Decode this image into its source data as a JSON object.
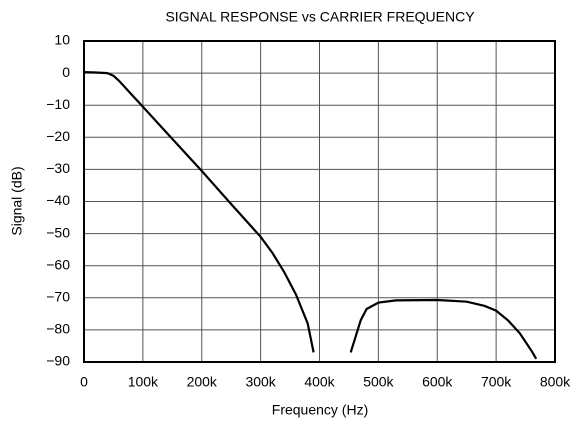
{
  "chart_data": {
    "type": "line",
    "title": "SIGNAL RESPONSE vs CARRIER FREQUENCY",
    "x_label": "Frequency (Hz)",
    "y_label": "Signal (dB)",
    "x": [
      0,
      20000,
      40000,
      50000,
      60000,
      70000,
      80000,
      100000,
      150000,
      200000,
      250000,
      300000,
      320000,
      340000,
      360000,
      380000,
      390000,
      420000,
      453000,
      470000,
      480000,
      500000,
      530000,
      600000,
      650000,
      680000,
      700000,
      720000,
      740000,
      760000,
      768000
    ],
    "series": [
      {
        "name": "Signal",
        "color": "#000000",
        "values": [
          0.3,
          0.2,
          0,
          -0.8,
          -2.5,
          -4.5,
          -6.5,
          -10.5,
          -20.5,
          -30.5,
          -40.8,
          -51,
          -56,
          -62,
          -69,
          -78,
          -87,
          null,
          -87,
          -77,
          -73.5,
          -71.5,
          -70.8,
          -70.7,
          -71.2,
          -72.5,
          -74,
          -77,
          -81,
          -86.5,
          -89
        ]
      }
    ],
    "xlim": [
      0,
      800000
    ],
    "xticks": [
      0,
      {
        "value": 100000,
        "label": "100k"
      },
      {
        "value": 200000,
        "label": "200k"
      },
      {
        "value": 300000,
        "label": "300k"
      },
      {
        "value": 400000,
        "label": "400k"
      },
      {
        "value": 500000,
        "label": "500k"
      },
      {
        "value": 600000,
        "label": "600k"
      },
      {
        "value": 700000,
        "label": "700k"
      },
      {
        "value": 800000,
        "label": "800k"
      }
    ],
    "ylim": [
      -90,
      10
    ],
    "yticks": [
      10,
      0,
      {
        "value": -10,
        "label": "−10"
      },
      {
        "value": -20,
        "label": "−20"
      },
      {
        "value": -30,
        "label": "−30"
      },
      {
        "value": -40,
        "label": "−40"
      },
      {
        "value": -50,
        "label": "−50"
      },
      {
        "value": -60,
        "label": "−60"
      },
      {
        "value": -70,
        "label": "−70"
      },
      {
        "value": -80,
        "label": "−80"
      },
      {
        "value": -90,
        "label": "−90"
      }
    ],
    "grid": true
  }
}
